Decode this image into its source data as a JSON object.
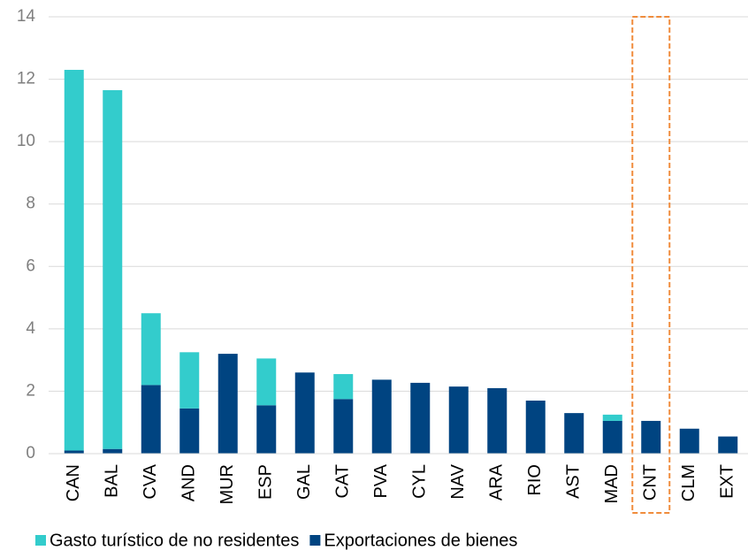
{
  "chart_data": {
    "type": "stacked_bar",
    "categories": [
      "CAN",
      "BAL",
      "CVA",
      "AND",
      "MUR",
      "ESP",
      "GAL",
      "CAT",
      "PVA",
      "CYL",
      "NAV",
      "ARA",
      "RIO",
      "AST",
      "MAD",
      "CNT",
      "CLM",
      "EXT"
    ],
    "series": [
      {
        "name": "Exportaciones de bienes",
        "color": "#004481",
        "values": [
          0.1,
          0.15,
          2.2,
          1.45,
          3.2,
          1.55,
          2.6,
          1.75,
          2.37,
          2.27,
          2.15,
          2.1,
          1.7,
          1.3,
          1.05,
          1.05,
          0.8,
          0.55
        ]
      },
      {
        "name": "Gasto turístico de no residentes",
        "color": "#33cccc",
        "values": [
          12.2,
          11.5,
          2.3,
          1.8,
          0,
          1.5,
          0,
          0.8,
          0,
          0,
          0,
          0,
          0,
          0,
          0.2,
          0,
          0,
          0
        ]
      }
    ],
    "legend_order": [
      1,
      0
    ],
    "ylim": [
      0,
      14
    ],
    "yticks": [
      0,
      2,
      4,
      6,
      8,
      10,
      12,
      14
    ],
    "grid": true,
    "highlight_category": "CNT",
    "highlight_color": "#f08c3c"
  }
}
